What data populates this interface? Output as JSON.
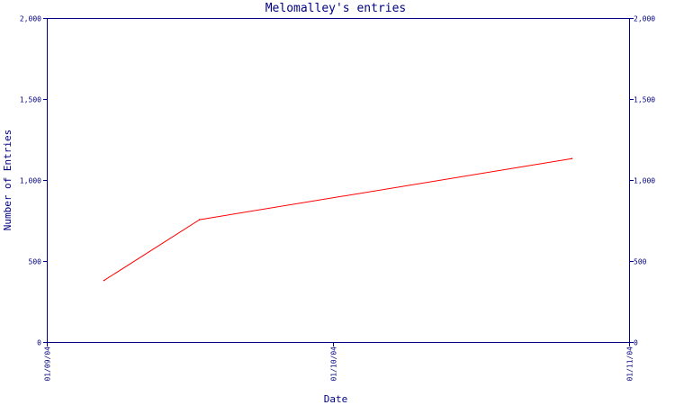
{
  "chart_data": {
    "type": "line",
    "title": "Melomalley's entries",
    "xlabel": "Date",
    "ylabel": "Number of Entries",
    "x_range": [
      "2004-09-01",
      "2004-11-01"
    ],
    "x_ticks": [
      {
        "date": "2004-09-01",
        "label": "01/09/04"
      },
      {
        "date": "2004-10-01",
        "label": "01/10/04"
      },
      {
        "date": "2004-11-01",
        "label": "01/11/04"
      }
    ],
    "ylim": [
      0,
      2000
    ],
    "y_ticks": [
      {
        "value": 0,
        "label": "0"
      },
      {
        "value": 500,
        "label": "500"
      },
      {
        "value": 1000,
        "label": "1,000"
      },
      {
        "value": 1500,
        "label": "1,500"
      },
      {
        "value": 2000,
        "label": "2,000"
      }
    ],
    "y_axis_right": true,
    "grid": false,
    "series": [
      {
        "color": "#ff0000",
        "points": [
          {
            "x": "2004-09-07",
            "y": 380
          },
          {
            "x": "2004-09-17",
            "y": 755
          },
          {
            "x": "2004-10-26",
            "y": 1132
          }
        ]
      }
    ]
  }
}
